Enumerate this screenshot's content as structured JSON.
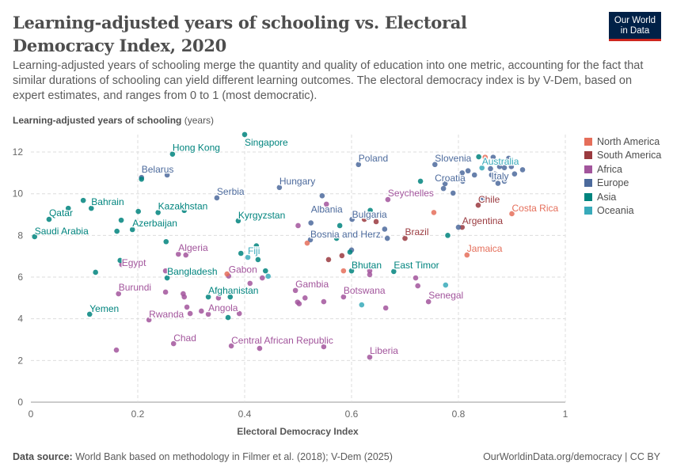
{
  "title": "Learning-adjusted years of schooling vs. Electoral Democracy Index, 2020",
  "subtitle": "Learning-adjusted years of schooling merge the quantity and quality of education into one metric, accounting for the fact that similar durations of schooling can yield different learning outcomes. The electoral democracy index is by V-Dem, based on expert estimates, and ranges from 0 to 1 (most democratic).",
  "logo": {
    "line1": "Our World",
    "line2": "in Data"
  },
  "footer": {
    "source_label": "Data source:",
    "source": "World Bank based on methodology in Filmer et al. (2018); V-Dem (2025)",
    "link": "OurWorldinData.org/democracy | CC BY"
  },
  "chart_data": {
    "type": "scatter",
    "title": "Learning-adjusted years of schooling vs. Electoral Democracy Index, 2020",
    "xlabel": "Electoral Democracy Index",
    "ylabel": "Learning-adjusted years of schooling",
    "ylabel_unit": "(years)",
    "xlim": [
      0,
      1
    ],
    "ylim": [
      0,
      13
    ],
    "xticks": [
      "0",
      "0.2",
      "0.4",
      "0.6",
      "0.8",
      "1"
    ],
    "yticks": [
      "0",
      "2",
      "4",
      "6",
      "8",
      "10",
      "12"
    ],
    "grid": true,
    "legend_position": "right",
    "regions": [
      {
        "name": "North America",
        "color": "#e56e5a"
      },
      {
        "name": "South America",
        "color": "#9a3a3f"
      },
      {
        "name": "Africa",
        "color": "#a2559c"
      },
      {
        "name": "Europe",
        "color": "#4c6a9c"
      },
      {
        "name": "Asia",
        "color": "#00847e"
      },
      {
        "name": "Oceania",
        "color": "#38aaba"
      }
    ],
    "points": [
      {
        "label": "Singapore",
        "region": "Asia",
        "x": 0.4,
        "y": 12.84
      },
      {
        "label": "Hong Kong",
        "region": "Asia",
        "x": 0.265,
        "y": 11.9
      },
      {
        "label": "Belarus",
        "region": "Europe",
        "x": 0.207,
        "y": 10.78
      },
      {
        "label": "",
        "region": "Asia",
        "x": 0.207,
        "y": 10.7
      },
      {
        "label": "",
        "region": "Europe",
        "x": 0.255,
        "y": 10.9
      },
      {
        "label": "Bahrain",
        "region": "Asia",
        "x": 0.113,
        "y": 9.3
      },
      {
        "label": "",
        "region": "Asia",
        "x": 0.098,
        "y": 9.68
      },
      {
        "label": "Qatar",
        "region": "Asia",
        "x": 0.034,
        "y": 8.77
      },
      {
        "label": "",
        "region": "Asia",
        "x": 0.07,
        "y": 9.3
      },
      {
        "label": "Saudi Arabia",
        "region": "Asia",
        "x": 0.007,
        "y": 7.94
      },
      {
        "label": "Kazakhstan",
        "region": "Asia",
        "x": 0.238,
        "y": 9.1
      },
      {
        "label": "",
        "region": "Asia",
        "x": 0.201,
        "y": 9.15
      },
      {
        "label": "",
        "region": "Asia",
        "x": 0.287,
        "y": 9.2
      },
      {
        "label": "Serbia",
        "region": "Europe",
        "x": 0.348,
        "y": 9.8
      },
      {
        "label": "Azerbaijan",
        "region": "Asia",
        "x": 0.19,
        "y": 8.28
      },
      {
        "label": "",
        "region": "Asia",
        "x": 0.169,
        "y": 8.73
      },
      {
        "label": "",
        "region": "Asia",
        "x": 0.161,
        "y": 8.2
      },
      {
        "label": "Kyrgyzstan",
        "region": "Asia",
        "x": 0.388,
        "y": 8.7
      },
      {
        "label": "Algeria",
        "region": "Africa",
        "x": 0.276,
        "y": 7.1
      },
      {
        "label": "",
        "region": "Africa",
        "x": 0.29,
        "y": 7.06
      },
      {
        "label": "",
        "region": "Asia",
        "x": 0.253,
        "y": 7.7
      },
      {
        "label": "Egypt",
        "region": "Africa",
        "x": 0.17,
        "y": 6.6
      },
      {
        "label": "",
        "region": "Asia",
        "x": 0.167,
        "y": 6.8
      },
      {
        "label": "Hungary",
        "region": "Europe",
        "x": 0.465,
        "y": 10.3
      },
      {
        "label": "Poland",
        "region": "Europe",
        "x": 0.613,
        "y": 11.4
      },
      {
        "label": "",
        "region": "Europe",
        "x": 0.545,
        "y": 9.9
      },
      {
        "label": "Albania",
        "region": "Europe",
        "x": 0.524,
        "y": 8.6
      },
      {
        "label": "",
        "region": "Africa",
        "x": 0.553,
        "y": 9.5
      },
      {
        "label": "Fiji",
        "region": "Oceania",
        "x": 0.406,
        "y": 6.95
      },
      {
        "label": "",
        "region": "Asia",
        "x": 0.393,
        "y": 7.14
      },
      {
        "label": "",
        "region": "Asia",
        "x": 0.425,
        "y": 6.84
      },
      {
        "label": "",
        "region": "Asia",
        "x": 0.422,
        "y": 7.5
      },
      {
        "label": "Bulgaria",
        "region": "Europe",
        "x": 0.601,
        "y": 8.77
      },
      {
        "label": "",
        "region": "South America",
        "x": 0.624,
        "y": 8.77
      },
      {
        "label": "",
        "region": "South America",
        "x": 0.646,
        "y": 8.66
      },
      {
        "label": "",
        "region": "Europe",
        "x": 0.662,
        "y": 8.3
      },
      {
        "label": "",
        "region": "Asia",
        "x": 0.635,
        "y": 9.2
      },
      {
        "label": "Bosnia and Herz.",
        "region": "Europe",
        "x": 0.523,
        "y": 7.79
      },
      {
        "label": "",
        "region": "North America",
        "x": 0.517,
        "y": 7.63
      },
      {
        "label": "",
        "region": "Asia",
        "x": 0.578,
        "y": 8.47
      },
      {
        "label": "",
        "region": "Asia",
        "x": 0.572,
        "y": 7.86
      },
      {
        "label": "",
        "region": "Europe",
        "x": 0.667,
        "y": 7.86
      },
      {
        "label": "Brazil",
        "region": "South America",
        "x": 0.7,
        "y": 7.86
      },
      {
        "label": "Seychelles",
        "region": "Africa",
        "x": 0.668,
        "y": 9.72
      },
      {
        "label": "",
        "region": "Asia",
        "x": 0.729,
        "y": 10.6
      },
      {
        "label": "",
        "region": "North America",
        "x": 0.754,
        "y": 9.1
      },
      {
        "label": "",
        "region": "Africa",
        "x": 0.5,
        "y": 8.47
      },
      {
        "label": "",
        "region": "Europe",
        "x": 0.6,
        "y": 7.3
      },
      {
        "label": "",
        "region": "Asia",
        "x": 0.597,
        "y": 7.2
      },
      {
        "label": "",
        "region": "South America",
        "x": 0.557,
        "y": 6.84
      },
      {
        "label": "",
        "region": "South America",
        "x": 0.582,
        "y": 7.03
      },
      {
        "label": "Slovenia",
        "region": "Europe",
        "x": 0.756,
        "y": 11.4
      },
      {
        "label": "",
        "region": "Asia",
        "x": 0.838,
        "y": 11.77
      },
      {
        "label": "Australia",
        "region": "Oceania",
        "x": 0.844,
        "y": 11.24
      },
      {
        "label": "Croatia",
        "region": "Europe",
        "x": 0.775,
        "y": 10.48
      },
      {
        "label": "",
        "region": "Europe",
        "x": 0.772,
        "y": 10.25
      },
      {
        "label": "",
        "region": "Europe",
        "x": 0.79,
        "y": 10.03
      },
      {
        "label": "",
        "region": "Europe",
        "x": 0.807,
        "y": 11.0
      },
      {
        "label": "",
        "region": "Europe",
        "x": 0.818,
        "y": 11.1
      },
      {
        "label": "",
        "region": "Europe",
        "x": 0.83,
        "y": 10.9
      },
      {
        "label": "",
        "region": "Europe",
        "x": 0.86,
        "y": 11.2
      },
      {
        "label": "",
        "region": "Europe",
        "x": 0.868,
        "y": 10.95
      },
      {
        "label": "",
        "region": "Europe",
        "x": 0.877,
        "y": 11.3
      },
      {
        "label": "",
        "region": "Europe",
        "x": 0.886,
        "y": 11.25
      },
      {
        "label": "",
        "region": "Europe",
        "x": 0.899,
        "y": 11.3
      },
      {
        "label": "",
        "region": "Europe",
        "x": 0.92,
        "y": 11.15
      },
      {
        "label": "",
        "region": "Europe",
        "x": 0.905,
        "y": 10.95
      },
      {
        "label": "",
        "region": "Europe",
        "x": 0.862,
        "y": 10.9
      },
      {
        "label": "Italy",
        "region": "Europe",
        "x": 0.866,
        "y": 10.7
      },
      {
        "label": "",
        "region": "Europe",
        "x": 0.874,
        "y": 10.5
      },
      {
        "label": "",
        "region": "Europe",
        "x": 0.886,
        "y": 10.6
      },
      {
        "label": "",
        "region": "Europe",
        "x": 0.881,
        "y": 11.55
      },
      {
        "label": "",
        "region": "Europe",
        "x": 0.865,
        "y": 11.75
      },
      {
        "label": "",
        "region": "Europe",
        "x": 0.894,
        "y": 11.7
      },
      {
        "label": "",
        "region": "North America",
        "x": 0.85,
        "y": 11.75
      },
      {
        "label": "",
        "region": "Europe",
        "x": 0.808,
        "y": 10.6
      },
      {
        "label": "Chile",
        "region": "South America",
        "x": 0.837,
        "y": 9.45
      },
      {
        "label": "",
        "region": "Europe",
        "x": 0.846,
        "y": 9.8
      },
      {
        "label": "Costa Rica",
        "region": "North America",
        "x": 0.9,
        "y": 9.04
      },
      {
        "label": "Argentina",
        "region": "South America",
        "x": 0.807,
        "y": 8.39
      },
      {
        "label": "",
        "region": "Europe",
        "x": 0.8,
        "y": 8.39
      },
      {
        "label": "",
        "region": "Asia",
        "x": 0.78,
        "y": 8.0
      },
      {
        "label": "Jamaica",
        "region": "North America",
        "x": 0.816,
        "y": 7.06
      },
      {
        "label": "Bhutan",
        "region": "Asia",
        "x": 0.6,
        "y": 6.3
      },
      {
        "label": "",
        "region": "North America",
        "x": 0.585,
        "y": 6.3
      },
      {
        "label": "",
        "region": "Africa",
        "x": 0.634,
        "y": 6.3
      },
      {
        "label": "",
        "region": "Africa",
        "x": 0.634,
        "y": 6.12
      },
      {
        "label": "East Timor",
        "region": "Asia",
        "x": 0.679,
        "y": 6.27
      },
      {
        "label": "",
        "region": "Africa",
        "x": 0.72,
        "y": 5.96
      },
      {
        "label": "",
        "region": "Africa",
        "x": 0.724,
        "y": 5.58
      },
      {
        "label": "",
        "region": "Oceania",
        "x": 0.776,
        "y": 5.62
      },
      {
        "label": "Senegal",
        "region": "Africa",
        "x": 0.744,
        "y": 4.82
      },
      {
        "label": "Gambia",
        "region": "Africa",
        "x": 0.495,
        "y": 5.36
      },
      {
        "label": "",
        "region": "Africa",
        "x": 0.513,
        "y": 5.0
      },
      {
        "label": "",
        "region": "Africa",
        "x": 0.499,
        "y": 4.8
      },
      {
        "label": "",
        "region": "Africa",
        "x": 0.502,
        "y": 4.72
      },
      {
        "label": "",
        "region": "Africa",
        "x": 0.548,
        "y": 4.82
      },
      {
        "label": "Botswana",
        "region": "Africa",
        "x": 0.585,
        "y": 5.05
      },
      {
        "label": "",
        "region": "Oceania",
        "x": 0.619,
        "y": 4.67
      },
      {
        "label": "",
        "region": "Africa",
        "x": 0.664,
        "y": 4.52
      },
      {
        "label": "Liberia",
        "region": "Africa",
        "x": 0.634,
        "y": 2.16
      },
      {
        "label": "Central African Republic",
        "region": "Africa",
        "x": 0.375,
        "y": 2.7
      },
      {
        "label": "",
        "region": "Africa",
        "x": 0.428,
        "y": 2.58
      },
      {
        "label": "",
        "region": "Africa",
        "x": 0.548,
        "y": 2.66
      },
      {
        "label": "Chad",
        "region": "Africa",
        "x": 0.267,
        "y": 2.81
      },
      {
        "label": "Rwanda",
        "region": "Africa",
        "x": 0.221,
        "y": 3.95
      },
      {
        "label": "Burundi",
        "region": "Africa",
        "x": 0.164,
        "y": 5.2
      },
      {
        "label": "",
        "region": "Africa",
        "x": 0.16,
        "y": 2.5
      },
      {
        "label": "Yemen",
        "region": "Asia",
        "x": 0.11,
        "y": 4.22
      },
      {
        "label": "Angola",
        "region": "Africa",
        "x": 0.332,
        "y": 4.22
      },
      {
        "label": "",
        "region": "Africa",
        "x": 0.298,
        "y": 4.25
      },
      {
        "label": "",
        "region": "Africa",
        "x": 0.319,
        "y": 4.37
      },
      {
        "label": "",
        "region": "Africa",
        "x": 0.292,
        "y": 4.56
      },
      {
        "label": "",
        "region": "Asia",
        "x": 0.369,
        "y": 4.06
      },
      {
        "label": "",
        "region": "Africa",
        "x": 0.39,
        "y": 4.25
      },
      {
        "label": "Afghanistan",
        "region": "Asia",
        "x": 0.332,
        "y": 5.05
      },
      {
        "label": "",
        "region": "Asia",
        "x": 0.373,
        "y": 5.05
      },
      {
        "label": "",
        "region": "Africa",
        "x": 0.351,
        "y": 5.0
      },
      {
        "label": "Bangladesh",
        "region": "Asia",
        "x": 0.255,
        "y": 5.96
      },
      {
        "label": "",
        "region": "Africa",
        "x": 0.252,
        "y": 6.3
      },
      {
        "label": "Gabon",
        "region": "Africa",
        "x": 0.37,
        "y": 6.05
      },
      {
        "label": "",
        "region": "North America",
        "x": 0.367,
        "y": 6.15
      },
      {
        "label": "",
        "region": "Africa",
        "x": 0.285,
        "y": 5.2
      },
      {
        "label": "",
        "region": "Africa",
        "x": 0.287,
        "y": 5.05
      },
      {
        "label": "",
        "region": "Africa",
        "x": 0.252,
        "y": 5.28
      },
      {
        "label": "",
        "region": "Asia",
        "x": 0.121,
        "y": 6.23
      },
      {
        "label": "",
        "region": "Asia",
        "x": 0.439,
        "y": 6.3
      },
      {
        "label": "",
        "region": "Oceania",
        "x": 0.444,
        "y": 6.04
      },
      {
        "label": "",
        "region": "Africa",
        "x": 0.433,
        "y": 5.96
      },
      {
        "label": "",
        "region": "Africa",
        "x": 0.41,
        "y": 5.7
      }
    ]
  }
}
